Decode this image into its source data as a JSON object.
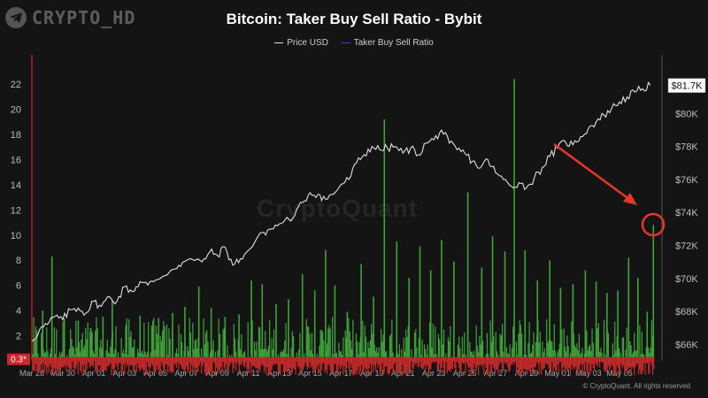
{
  "channel": {
    "name": "CRYPTO_HD",
    "icon": "telegram-icon"
  },
  "watermark": "CryptoQuant",
  "copyright": "© CryptoQuant. All rights reserved",
  "colors": {
    "background": "#141414",
    "price": "#e0e0e0",
    "ratio_up": "#3fa33a",
    "ratio_down": "#c62a2a",
    "ratio_legend": "#4b3fb3",
    "arrow": "#e8362a"
  },
  "chart_data": {
    "type": "line",
    "title": "Bitcoin: Taker Buy Sell Ratio - Bybit",
    "legend_placement": "top-center",
    "grid": false,
    "x_ticks": [
      "Mar 28",
      "Mar 30",
      "Apr 01",
      "Apr 03",
      "Apr 05",
      "Apr 07",
      "Apr 09",
      "Apr 11",
      "Apr 13",
      "Apr 15",
      "Apr 17",
      "Apr 19",
      "Apr 21",
      "Apr 23",
      "Apr 25",
      "Apr 27",
      "Apr 29",
      "May 01",
      "May 03",
      "May 05"
    ],
    "x_range_days": [
      0,
      40.3
    ],
    "y_left": {
      "ticks": [
        2,
        4,
        6,
        8,
        10,
        12,
        14,
        16,
        18,
        20,
        22
      ],
      "range": [
        0,
        23.2
      ],
      "current_label": "0.3*"
    },
    "y_right": {
      "ticks": [
        "$66K",
        "$68K",
        "$70K",
        "$72K",
        "$74K",
        "$76K",
        "$78K",
        "$80K"
      ],
      "tick_values": [
        66000,
        68000,
        70000,
        72000,
        74000,
        76000,
        78000,
        80000
      ],
      "range": [
        65000,
        82700
      ],
      "current_label": "$81.7K"
    },
    "series": [
      {
        "name": "Price USD",
        "axis": "right",
        "points_day_value": [
          [
            0,
            66200
          ],
          [
            0.5,
            66900
          ],
          [
            1,
            67200
          ],
          [
            1.5,
            67700
          ],
          [
            2,
            67500
          ],
          [
            2.5,
            68100
          ],
          [
            3,
            68200
          ],
          [
            3.5,
            67900
          ],
          [
            4,
            68600
          ],
          [
            4.5,
            68300
          ],
          [
            5,
            68900
          ],
          [
            5.5,
            68600
          ],
          [
            6,
            69500
          ],
          [
            6.5,
            69200
          ],
          [
            7,
            69800
          ],
          [
            7.5,
            69600
          ],
          [
            8,
            69900
          ],
          [
            9,
            70500
          ],
          [
            9.5,
            70800
          ],
          [
            10,
            71100
          ],
          [
            11,
            71000
          ],
          [
            11.5,
            71600
          ],
          [
            12,
            71400
          ],
          [
            12.5,
            71900
          ],
          [
            13,
            70800
          ],
          [
            13.5,
            71200
          ],
          [
            14,
            71700
          ],
          [
            15,
            72800
          ],
          [
            15.5,
            73000
          ],
          [
            16,
            73300
          ],
          [
            17,
            73800
          ],
          [
            17.5,
            74600
          ],
          [
            18,
            75200
          ],
          [
            18.5,
            75100
          ],
          [
            19,
            74800
          ],
          [
            19.5,
            75100
          ],
          [
            20,
            75700
          ],
          [
            20.5,
            76000
          ],
          [
            21,
            77000
          ],
          [
            21.5,
            77500
          ],
          [
            22,
            78000
          ],
          [
            22.5,
            77800
          ],
          [
            23,
            77900
          ],
          [
            23.5,
            78000
          ],
          [
            24,
            77600
          ],
          [
            24.5,
            77900
          ],
          [
            25,
            77500
          ],
          [
            25.5,
            78200
          ],
          [
            26,
            78400
          ],
          [
            26.5,
            79000
          ],
          [
            27,
            78200
          ],
          [
            27.5,
            77800
          ],
          [
            28,
            77600
          ],
          [
            28.5,
            77100
          ],
          [
            29,
            76700
          ],
          [
            29.5,
            77200
          ],
          [
            30,
            76400
          ],
          [
            30.5,
            76000
          ],
          [
            31,
            75600
          ],
          [
            31.5,
            75800
          ],
          [
            32,
            75500
          ],
          [
            32.5,
            76100
          ],
          [
            33,
            76700
          ],
          [
            33.5,
            77400
          ],
          [
            34,
            77900
          ],
          [
            34.5,
            78300
          ],
          [
            35,
            78100
          ],
          [
            35.5,
            78600
          ],
          [
            36,
            79100
          ],
          [
            36.5,
            79500
          ],
          [
            37,
            79900
          ],
          [
            37.5,
            80300
          ],
          [
            38,
            80700
          ],
          [
            38.5,
            81000
          ],
          [
            39,
            81300
          ],
          [
            39.5,
            81500
          ],
          [
            40,
            81700
          ]
        ]
      },
      {
        "name": "Taker Buy Sell Ratio",
        "axis": "left",
        "baseline": 0.3,
        "spikes_day_value": [
          [
            0.7,
            4
          ],
          [
            1.3,
            8.3
          ],
          [
            2.1,
            3.4
          ],
          [
            3.0,
            3.2
          ],
          [
            3.8,
            2.6
          ],
          [
            4.6,
            3.5
          ],
          [
            5.2,
            4.8
          ],
          [
            6.1,
            2.9
          ],
          [
            7.0,
            3.6
          ],
          [
            8.2,
            3.4
          ],
          [
            9.1,
            3.8
          ],
          [
            9.9,
            4.3
          ],
          [
            10.8,
            5.9
          ],
          [
            11.6,
            4.2
          ],
          [
            12.5,
            3.5
          ],
          [
            13.4,
            3.7
          ],
          [
            14.2,
            6.4
          ],
          [
            14.9,
            6.1
          ],
          [
            15.8,
            4.5
          ],
          [
            16.6,
            4.9
          ],
          [
            17.5,
            6.9
          ],
          [
            18.3,
            5.6
          ],
          [
            19.0,
            8.8
          ],
          [
            19.6,
            6.0
          ],
          [
            20.4,
            3.9
          ],
          [
            21.3,
            7.7
          ],
          [
            22.1,
            5.1
          ],
          [
            22.8,
            19.2
          ],
          [
            23.6,
            9.5
          ],
          [
            24.4,
            6.6
          ],
          [
            25.1,
            9.1
          ],
          [
            25.8,
            7.2
          ],
          [
            26.5,
            9.6
          ],
          [
            27.3,
            7.9
          ],
          [
            28.2,
            13.4
          ],
          [
            29.1,
            7.4
          ],
          [
            29.8,
            9.9
          ],
          [
            30.6,
            8.7
          ],
          [
            31.2,
            22.4
          ],
          [
            31.9,
            8.8
          ],
          [
            32.7,
            6.4
          ],
          [
            33.5,
            8.0
          ],
          [
            34.2,
            5.8
          ],
          [
            35.0,
            6.1
          ],
          [
            35.8,
            7.2
          ],
          [
            36.5,
            6.3
          ],
          [
            37.2,
            5.4
          ],
          [
            37.9,
            5.6
          ],
          [
            38.6,
            8.2
          ],
          [
            39.2,
            6.6
          ],
          [
            39.8,
            3.9
          ],
          [
            40.2,
            10.8
          ]
        ]
      }
    ]
  }
}
